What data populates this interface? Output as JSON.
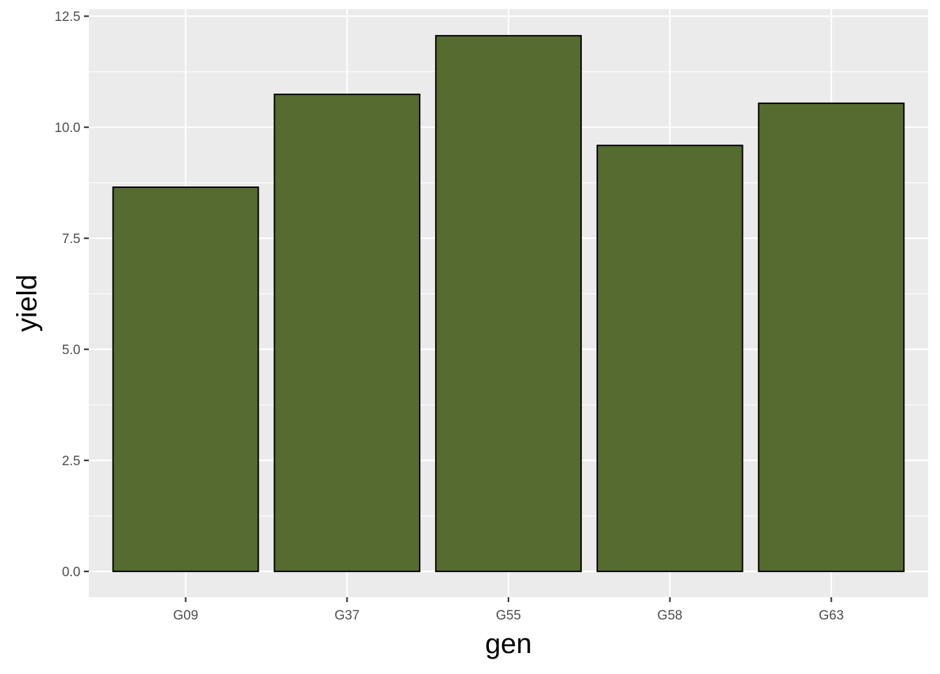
{
  "chart_data": {
    "type": "bar",
    "categories": [
      "G09",
      "G37",
      "G55",
      "G58",
      "G63"
    ],
    "values": [
      8.65,
      10.74,
      12.06,
      9.59,
      10.54
    ],
    "xlabel": "gen",
    "ylabel": "yield",
    "ylim": [
      -0.58,
      12.66
    ],
    "yticks": [
      0,
      2.5,
      5,
      7.5,
      10,
      12.5
    ],
    "ytick_labels": [
      "0.0",
      "2.5",
      "5.0",
      "7.5",
      "10.0",
      "12.5"
    ],
    "grid": true,
    "colors": {
      "bar_fill": "#556B2F",
      "bar_outline": "#000000",
      "panel_background": "#EBEBEB",
      "grid": "#FFFFFF"
    }
  }
}
